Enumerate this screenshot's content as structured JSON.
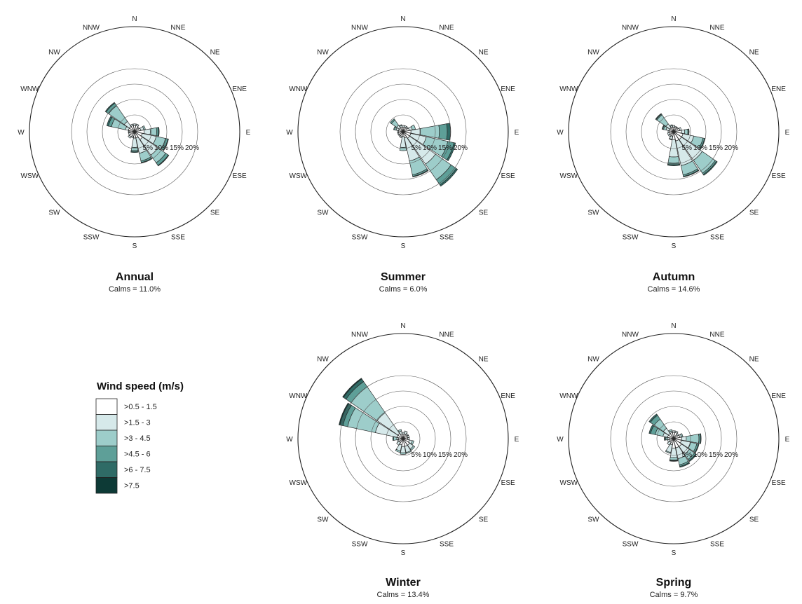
{
  "chart_data": [
    {
      "type": "windrose",
      "title": "Annual",
      "calms": "Calms = 11.0%",
      "rings": [
        "5%",
        "10%",
        "15%",
        "20%"
      ],
      "ring_values": [
        5,
        10,
        15,
        20
      ],
      "directions": [
        "N",
        "NNE",
        "NE",
        "ENE",
        "E",
        "ESE",
        "SE",
        "SSE",
        "S",
        "SSW",
        "SW",
        "WSW",
        "W",
        "WNW",
        "NW",
        "NNW"
      ],
      "series": [
        {
          "name": ">0.5 - 1.5",
          "values": [
            2.0,
            2.0,
            1.5,
            2.0,
            3.0,
            2.5,
            3.0,
            2.0,
            2.0,
            1.5,
            2.0,
            1.5,
            1.5,
            2.0,
            2.0,
            2.0
          ]
        },
        {
          "name": ">1.5 - 3",
          "values": [
            0.5,
            0.5,
            0.3,
            1.0,
            2.0,
            4.5,
            6.0,
            5.0,
            3.0,
            0.5,
            0.5,
            0.5,
            0.3,
            1.0,
            2.0,
            0.5
          ]
        },
        {
          "name": ">3 - 4.5",
          "values": [
            0,
            0,
            0,
            0.5,
            2.0,
            3.0,
            3.0,
            2.5,
            1.0,
            0,
            0,
            0,
            0.2,
            4.5,
            6.0,
            0
          ]
        },
        {
          "name": ">4.5 - 6",
          "values": [
            0,
            0,
            0,
            0,
            0.5,
            0.8,
            1.0,
            0.5,
            0.4,
            0,
            0,
            0,
            0,
            1.0,
            1.0,
            0
          ]
        },
        {
          "name": ">6 - 7.5",
          "values": [
            0,
            0,
            0,
            0,
            0.3,
            0.2,
            0.2,
            0.2,
            0.2,
            0,
            0,
            0,
            0,
            0.5,
            0.3,
            0
          ]
        },
        {
          "name": ">7.5",
          "values": [
            0,
            0,
            0,
            0,
            0,
            0,
            0,
            0,
            0,
            0,
            0,
            0,
            0,
            0,
            0,
            0
          ]
        }
      ]
    },
    {
      "type": "windrose",
      "title": "Summer",
      "calms": "Calms = 6.0%",
      "rings": [
        "5%",
        "10%",
        "15%",
        "20%"
      ],
      "ring_values": [
        5,
        10,
        15,
        20
      ],
      "directions": [
        "N",
        "NNE",
        "NE",
        "ENE",
        "E",
        "ESE",
        "SE",
        "SSE",
        "S",
        "SSW",
        "SW",
        "WSW",
        "W",
        "WNW",
        "NW",
        "NNW"
      ],
      "series": [
        {
          "name": ">0.5 - 1.5",
          "values": [
            1.5,
            1.5,
            1.5,
            2.0,
            2.5,
            2.5,
            2.5,
            2.0,
            1.5,
            1.5,
            1.5,
            1.5,
            1.5,
            1.5,
            1.5,
            1.5
          ]
        },
        {
          "name": ">1.5 - 3",
          "values": [
            0.5,
            0.5,
            0.5,
            1.0,
            3.0,
            5.0,
            10.0,
            7.5,
            3.5,
            0.5,
            0.3,
            0.3,
            0.3,
            0.8,
            1.0,
            0.5
          ]
        },
        {
          "name": ">3 - 4.5",
          "values": [
            0,
            0,
            0,
            1.0,
            6.0,
            7.0,
            6.0,
            4.5,
            1.0,
            0,
            0,
            0,
            0,
            0.5,
            2.0,
            0.3
          ]
        },
        {
          "name": ">4.5 - 6",
          "values": [
            0,
            0,
            0,
            0,
            2.5,
            2.0,
            2.0,
            0.5,
            0,
            0,
            0,
            0,
            0,
            0.3,
            0.5,
            0
          ]
        },
        {
          "name": ">6 - 7.5",
          "values": [
            0,
            0,
            0,
            0,
            1.0,
            0.5,
            0.5,
            0.2,
            0,
            0,
            0,
            0,
            0,
            0,
            0,
            0
          ]
        },
        {
          "name": ">7.5",
          "values": [
            0,
            0,
            0,
            0,
            0,
            0,
            0,
            0,
            0,
            0,
            0,
            0,
            0,
            0,
            0,
            0
          ]
        }
      ]
    },
    {
      "type": "windrose",
      "title": "Autumn",
      "calms": "Calms = 14.6%",
      "rings": [
        "5%",
        "10%",
        "15%",
        "20%"
      ],
      "ring_values": [
        5,
        10,
        15,
        20
      ],
      "directions": [
        "N",
        "NNE",
        "NE",
        "ENE",
        "E",
        "ESE",
        "SE",
        "SSE",
        "S",
        "SSW",
        "SW",
        "WSW",
        "W",
        "WNW",
        "NW",
        "NNW"
      ],
      "series": [
        {
          "name": ">0.5 - 1.5",
          "values": [
            1.5,
            1.5,
            1.5,
            2.0,
            2.5,
            3.0,
            3.0,
            3.0,
            2.5,
            1.5,
            1.5,
            1.5,
            1.5,
            1.5,
            1.5,
            1.5
          ]
        },
        {
          "name": ">1.5 - 3",
          "values": [
            0.5,
            0.3,
            0.3,
            0.5,
            1.0,
            3.5,
            8.0,
            8.0,
            5.5,
            1.0,
            0.5,
            0.5,
            0.3,
            1.0,
            1.5,
            0.5
          ]
        },
        {
          "name": ">3 - 4.5",
          "values": [
            0,
            0,
            0,
            0,
            1.0,
            3.0,
            5.0,
            3.0,
            2.0,
            0.2,
            0,
            0,
            0,
            0.8,
            3.5,
            0.3
          ]
        },
        {
          "name": ">4.5 - 6",
          "values": [
            0,
            0,
            0,
            0,
            0.3,
            0.5,
            0.5,
            0.5,
            0.5,
            0,
            0,
            0,
            0,
            0.3,
            0.3,
            0
          ]
        },
        {
          "name": ">6 - 7.5",
          "values": [
            0,
            0,
            0,
            0,
            0.1,
            0.2,
            0.3,
            0.2,
            0.3,
            0,
            0,
            0,
            0,
            0.2,
            0.2,
            0
          ]
        },
        {
          "name": ">7.5",
          "values": [
            0,
            0,
            0,
            0,
            0,
            0,
            0,
            0,
            0,
            0,
            0,
            0,
            0,
            0,
            0,
            0
          ]
        }
      ]
    },
    {
      "type": "windrose",
      "title": "Winter",
      "calms": "Calms = 13.4%",
      "rings": [
        "5%",
        "10%",
        "15%",
        "20%"
      ],
      "ring_values": [
        5,
        10,
        15,
        20
      ],
      "directions": [
        "N",
        "NNE",
        "NE",
        "ENE",
        "E",
        "ESE",
        "SE",
        "SSE",
        "S",
        "SSW",
        "SW",
        "WSW",
        "W",
        "WNW",
        "NW",
        "NNW"
      ],
      "series": [
        {
          "name": ">0.5 - 1.5",
          "values": [
            1.5,
            1.5,
            1.5,
            1.5,
            1.5,
            2.0,
            2.5,
            2.5,
            2.5,
            2.0,
            1.5,
            1.5,
            1.5,
            2.0,
            2.0,
            1.5
          ]
        },
        {
          "name": ">1.5 - 3",
          "values": [
            0.5,
            1.0,
            0.5,
            0.5,
            0.5,
            1.0,
            1.5,
            2.0,
            2.0,
            2.0,
            1.0,
            0.5,
            0.5,
            7.0,
            8.0,
            1.0
          ]
        },
        {
          "name": ">3 - 4.5",
          "values": [
            0,
            0,
            0,
            0,
            0,
            0.5,
            0.5,
            0.3,
            0.5,
            0.5,
            0,
            0,
            1.0,
            9.0,
            10.0,
            0.5
          ]
        },
        {
          "name": ">4.5 - 6",
          "values": [
            0,
            0,
            0,
            0,
            0,
            0,
            0,
            0,
            0,
            0,
            0,
            0,
            0.3,
            1.5,
            2.0,
            0
          ]
        },
        {
          "name": ">6 - 7.5",
          "values": [
            0,
            0,
            0,
            0,
            0,
            0,
            0,
            0,
            0,
            0,
            0,
            0,
            0,
            1.0,
            1.0,
            0
          ]
        },
        {
          "name": ">7.5",
          "values": [
            0,
            0,
            0,
            0,
            0,
            0,
            0,
            0,
            0,
            0,
            0,
            0,
            0,
            0.3,
            0.3,
            0
          ]
        }
      ]
    },
    {
      "type": "windrose",
      "title": "Spring",
      "calms": "Calms = 9.7%",
      "rings": [
        "5%",
        "10%",
        "15%",
        "20%"
      ],
      "ring_values": [
        5,
        10,
        15,
        20
      ],
      "directions": [
        "N",
        "NNE",
        "NE",
        "ENE",
        "E",
        "ESE",
        "SE",
        "SSE",
        "S",
        "SSW",
        "SW",
        "WSW",
        "W",
        "WNW",
        "NW",
        "NNW"
      ],
      "series": [
        {
          "name": ">0.5 - 1.5",
          "values": [
            2.0,
            2.0,
            1.5,
            2.0,
            2.5,
            2.5,
            3.0,
            3.0,
            3.0,
            2.0,
            1.5,
            1.5,
            1.5,
            2.0,
            2.0,
            2.0
          ]
        },
        {
          "name": ">1.5 - 3",
          "values": [
            0.5,
            0.5,
            0.5,
            0.5,
            1.5,
            3.0,
            3.0,
            3.5,
            3.0,
            2.5,
            1.0,
            0.5,
            0.5,
            1.5,
            2.0,
            0.5
          ]
        },
        {
          "name": ">3 - 4.5",
          "values": [
            0,
            0,
            0,
            0.5,
            4.0,
            2.0,
            2.0,
            2.0,
            0.8,
            0.3,
            0,
            0,
            0.5,
            2.5,
            3.5,
            0.5
          ]
        },
        {
          "name": ">4.5 - 6",
          "values": [
            0,
            0,
            0,
            0,
            0.5,
            0.5,
            0.5,
            0.5,
            0.2,
            0,
            0,
            0,
            0.3,
            1.5,
            1.5,
            0
          ]
        },
        {
          "name": ">6 - 7.5",
          "values": [
            0,
            0,
            0,
            0,
            0.2,
            0.2,
            0.3,
            0.3,
            0.2,
            0,
            0,
            0,
            0.2,
            0.5,
            0.5,
            0
          ]
        },
        {
          "name": ">7.5",
          "values": [
            0,
            0,
            0,
            0,
            0,
            0,
            0,
            0,
            0,
            0,
            0,
            0,
            0,
            0,
            0,
            0
          ]
        }
      ]
    }
  ],
  "legend": {
    "title": "Wind speed (m/s)",
    "items": [
      {
        "label": ">0.5 - 1.5",
        "color": "#ffffff"
      },
      {
        "label": ">1.5 - 3",
        "color": "#d6e9ea"
      },
      {
        "label": ">3 - 4.5",
        "color": "#9dcdca"
      },
      {
        "label": ">4.5 - 6",
        "color": "#5e9f98"
      },
      {
        "label": ">6 - 7.5",
        "color": "#2f6b66"
      },
      {
        "label": ">7.5",
        "color": "#0d3a36"
      }
    ]
  }
}
